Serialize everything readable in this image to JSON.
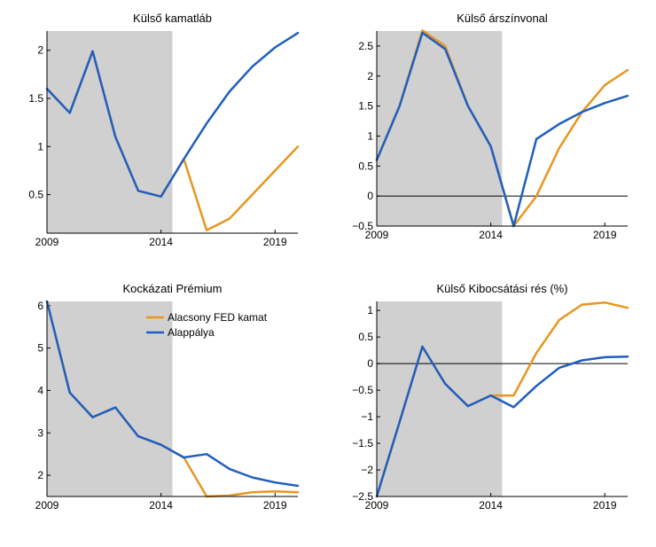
{
  "colors": {
    "low_fed": "#e8961e",
    "baseline": "#1f5fbf",
    "shade": "#d0d0d0"
  },
  "chart_data": [
    {
      "type": "line",
      "title": "Külső kamatláb",
      "x": [
        2009,
        2010,
        2011,
        2012,
        2013,
        2014,
        2015,
        2016,
        2017,
        2018,
        2019,
        2020
      ],
      "xlim": [
        2009,
        2020
      ],
      "xticks": [
        2009,
        2014,
        2019
      ],
      "ylim": [
        0.1,
        2.2
      ],
      "yticks": [
        0.5,
        1,
        1.5,
        2
      ],
      "ytick_labels": [
        "0.5",
        "1",
        "1.5",
        "2"
      ],
      "zero_line": false,
      "shaded_range": [
        2009,
        2014.5
      ],
      "series": [
        {
          "key": "low_fed",
          "values": [
            1.6,
            1.35,
            1.99,
            1.1,
            0.54,
            0.48,
            0.87,
            0.13,
            0.25,
            0.5,
            0.75,
            1.0
          ]
        },
        {
          "key": "baseline",
          "values": [
            1.6,
            1.35,
            1.99,
            1.1,
            0.54,
            0.48,
            0.87,
            1.24,
            1.57,
            1.83,
            2.03,
            2.18
          ]
        }
      ]
    },
    {
      "type": "line",
      "title": "Külső árszínvonal",
      "x": [
        2009,
        2010,
        2011,
        2012,
        2013,
        2014,
        2015,
        2016,
        2017,
        2018,
        2019,
        2020
      ],
      "xlim": [
        2009,
        2020
      ],
      "xticks": [
        2009,
        2014,
        2019
      ],
      "ylim": [
        -0.5,
        2.75
      ],
      "yticks": [
        -0.5,
        0,
        0.5,
        1,
        1.5,
        2,
        2.5
      ],
      "ytick_labels": [
        "−0.5",
        "0",
        "0.5",
        "1",
        "1.5",
        "2",
        "2.5"
      ],
      "zero_line": true,
      "shaded_range": [
        2009,
        2014.5
      ],
      "series": [
        {
          "key": "low_fed",
          "values": [
            0.6,
            1.5,
            2.76,
            2.5,
            1.5,
            0.83,
            -0.5,
            0.0,
            0.8,
            1.4,
            1.85,
            2.1
          ]
        },
        {
          "key": "baseline",
          "values": [
            0.6,
            1.5,
            2.72,
            2.45,
            1.5,
            0.83,
            -0.5,
            0.95,
            1.2,
            1.4,
            1.55,
            1.67
          ]
        }
      ]
    },
    {
      "type": "line",
      "title": "Kockázati Prémium",
      "x": [
        2009,
        2010,
        2011,
        2012,
        2013,
        2014,
        2015,
        2016,
        2017,
        2018,
        2019,
        2020
      ],
      "xlim": [
        2009,
        2020
      ],
      "xticks": [
        2009,
        2014,
        2019
      ],
      "ylim": [
        1.5,
        6.1
      ],
      "yticks": [
        2,
        3,
        4,
        5,
        6
      ],
      "ytick_labels": [
        "2",
        "3",
        "4",
        "5",
        "6"
      ],
      "zero_line": false,
      "shaded_range": [
        2009,
        2014.5
      ],
      "legend": {
        "placement": "top-right",
        "entries": [
          "Alacsony FED kamat",
          "Alappálya"
        ]
      },
      "series": [
        {
          "key": "low_fed",
          "values": [
            6.1,
            3.95,
            3.37,
            3.6,
            2.92,
            2.72,
            2.42,
            1.5,
            1.52,
            1.6,
            1.62,
            1.6
          ]
        },
        {
          "key": "baseline",
          "values": [
            6.1,
            3.95,
            3.37,
            3.6,
            2.92,
            2.72,
            2.42,
            2.5,
            2.15,
            1.95,
            1.83,
            1.75
          ]
        }
      ]
    },
    {
      "type": "line",
      "title": "Külső Kibocsátási rés (%)",
      "x": [
        2009,
        2010,
        2011,
        2012,
        2013,
        2014,
        2015,
        2016,
        2017,
        2018,
        2019,
        2020
      ],
      "xlim": [
        2009,
        2020
      ],
      "xticks": [
        2009,
        2014,
        2019
      ],
      "ylim": [
        -2.5,
        1.17
      ],
      "yticks": [
        -2.5,
        -2,
        -1.5,
        -1,
        -0.5,
        0,
        0.5,
        1
      ],
      "ytick_labels": [
        "−2.5",
        "−2",
        "−1.5",
        "−1",
        "−0.5",
        "0",
        "0.5",
        "1"
      ],
      "zero_line": true,
      "shaded_range": [
        2009,
        2014.5
      ],
      "series": [
        {
          "key": "low_fed",
          "values": [
            -2.5,
            -1.1,
            0.32,
            -0.38,
            -0.8,
            -0.6,
            -0.6,
            0.2,
            0.82,
            1.11,
            1.15,
            1.05
          ]
        },
        {
          "key": "baseline",
          "values": [
            -2.5,
            -1.1,
            0.32,
            -0.38,
            -0.8,
            -0.6,
            -0.82,
            -0.42,
            -0.08,
            0.06,
            0.12,
            0.13
          ]
        }
      ]
    }
  ]
}
